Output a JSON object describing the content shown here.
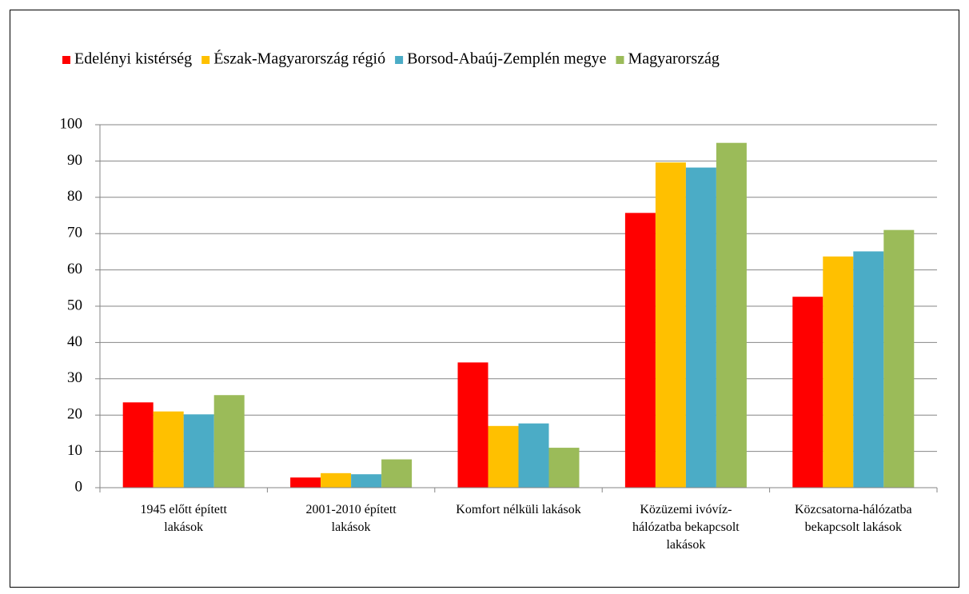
{
  "chart_data": {
    "type": "bar",
    "categories": [
      "1945 előtt épített lakások",
      "2001-2010 épített lakások",
      "Komfort nélküli lakások",
      "Közüzemi ivóvíz-hálózatba bekapcsolt lakások",
      "Közcsatorna-hálózatba bekapcsolt lakások"
    ],
    "series": [
      {
        "name": "Edelényi kistérség",
        "color": "#ff0000",
        "values": [
          23.5,
          2.8,
          34.5,
          75.7,
          52.6
        ]
      },
      {
        "name": "Észak-Magyarország régió",
        "color": "#ffc000",
        "values": [
          21,
          4,
          17,
          89.6,
          63.7
        ]
      },
      {
        "name": "Borsod-Abaúj-Zemplén megye",
        "color": "#4bacc6",
        "values": [
          20.2,
          3.7,
          17.7,
          88.2,
          65.1
        ]
      },
      {
        "name": "Magyarország",
        "color": "#9bbb59",
        "values": [
          25.5,
          7.8,
          11,
          95,
          71
        ]
      }
    ],
    "ylim": [
      0,
      100
    ],
    "yticks": [
      0,
      10,
      20,
      30,
      40,
      50,
      60,
      70,
      80,
      90,
      100
    ],
    "grid": true,
    "legend": "top"
  }
}
